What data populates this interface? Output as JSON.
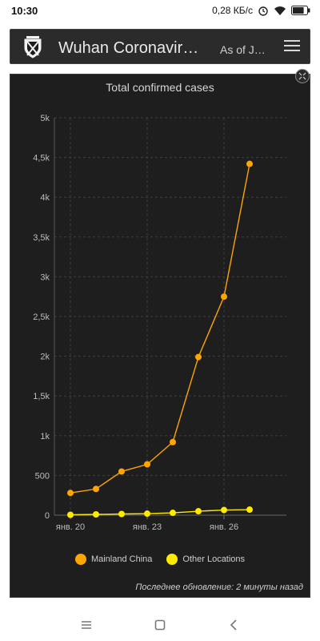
{
  "status_bar": {
    "time": "10:30",
    "network_speed": "0,28 КБ/с",
    "battery_level": 0.8
  },
  "header": {
    "title": "Wuhan Coronaviru…",
    "subtitle": "As of J…"
  },
  "chart_data": {
    "type": "line",
    "title": "Total confirmed cases",
    "x": [
      "янв. 20",
      "янв. 21",
      "янв. 22",
      "янв. 23",
      "янв. 24",
      "янв. 25",
      "янв. 26",
      "янв. 27"
    ],
    "x_tick_labels": [
      "янв. 20",
      "янв. 23",
      "янв. 26"
    ],
    "y_tick_labels": [
      "0",
      "500",
      "1k",
      "1,5k",
      "2k",
      "2,5k",
      "3k",
      "3,5k",
      "4k",
      "4,5k",
      "5k"
    ],
    "ylim": [
      0,
      5000
    ],
    "grid": true,
    "legend_position": "bottom",
    "series": [
      {
        "name": "Mainland China",
        "color": "#ffa500",
        "values": [
          280,
          330,
          550,
          640,
          920,
          1990,
          2750,
          4420
        ]
      },
      {
        "name": "Other Locations",
        "color": "#ffea00",
        "values": [
          5,
          10,
          15,
          20,
          30,
          50,
          65,
          70
        ]
      }
    ]
  },
  "footer": {
    "last_updated": "Последнее обновление: 2 минуты назад"
  }
}
